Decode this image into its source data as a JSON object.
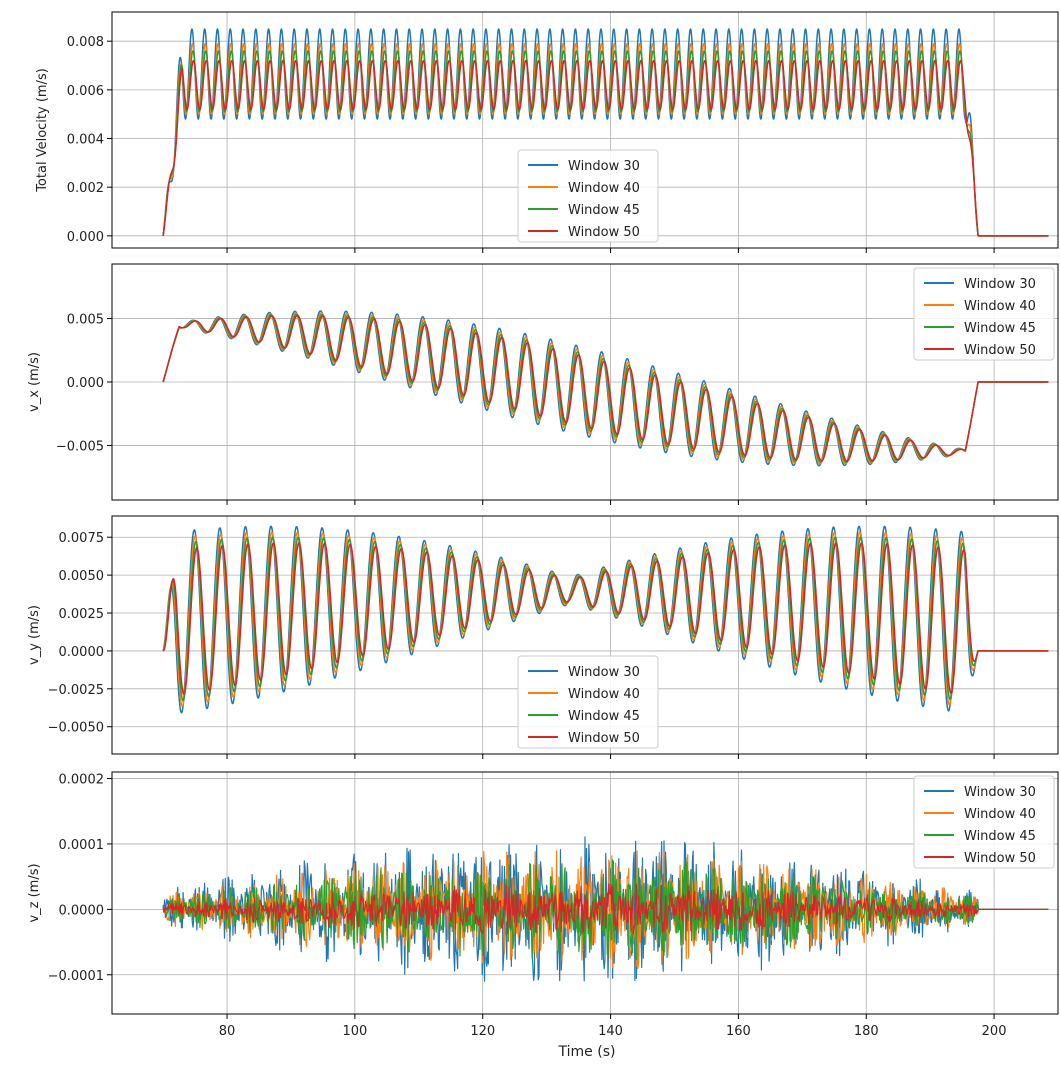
{
  "figure": {
    "xlabel": "Time (s)",
    "x_ticks": [
      80,
      100,
      120,
      140,
      160,
      180,
      200
    ]
  },
  "legend_entries": [
    {
      "label": "Window 30",
      "color": "#1f77b4"
    },
    {
      "label": "Window 40",
      "color": "#ff7f0e"
    },
    {
      "label": "Window 45",
      "color": "#2ca02c"
    },
    {
      "label": "Window 50",
      "color": "#d62728"
    }
  ],
  "chart_data": [
    {
      "type": "line",
      "ylabel": "Total Velocity (m/s)",
      "xlim": [
        62,
        210
      ],
      "ylim": [
        -0.0005,
        0.0092
      ],
      "y_ticks": [
        0.0,
        0.002,
        0.004,
        0.006,
        0.008
      ],
      "y_tick_labels": [
        "0.000",
        "0.002",
        "0.004",
        "0.006",
        "0.008"
      ],
      "legend_position": "lower-center",
      "grid": true,
      "signal": {
        "kind": "total",
        "t_start": 70,
        "t_end": 197.5,
        "t_flat_end": 208.5,
        "period": 2.0,
        "baseline": 0.005
      },
      "series": [
        {
          "name": "Window 30",
          "color": "#1f77b4",
          "peak": 0.0085,
          "trough": 0.0048
        },
        {
          "name": "Window 40",
          "color": "#ff7f0e",
          "peak": 0.0079,
          "trough": 0.005
        },
        {
          "name": "Window 45",
          "color": "#2ca02c",
          "peak": 0.0076,
          "trough": 0.0051
        },
        {
          "name": "Window 50",
          "color": "#d62728",
          "peak": 0.0072,
          "trough": 0.0052
        }
      ]
    },
    {
      "type": "line",
      "ylabel": "v_x (m/s)",
      "xlim": [
        62,
        210
      ],
      "ylim": [
        -0.0093,
        0.0093
      ],
      "y_ticks": [
        -0.005,
        0.0,
        0.005
      ],
      "y_tick_labels": [
        "−0.005",
        "0.000",
        "0.005"
      ],
      "legend_position": "upper-right",
      "grid": true,
      "signal": {
        "kind": "vx",
        "t_start": 70,
        "t_end": 197.5,
        "t_flat_end": 208.5,
        "period": 4.0,
        "max_amplitude": 0.0035
      },
      "series": [
        {
          "name": "Window 30",
          "color": "#1f77b4",
          "amplitude_scale": 1.0
        },
        {
          "name": "Window 40",
          "color": "#ff7f0e",
          "amplitude_scale": 0.92
        },
        {
          "name": "Window 45",
          "color": "#2ca02c",
          "amplitude_scale": 0.86
        },
        {
          "name": "Window 50",
          "color": "#d62728",
          "amplitude_scale": 0.8
        }
      ]
    },
    {
      "type": "line",
      "ylabel": "v_y (m/s)",
      "xlim": [
        62,
        210
      ],
      "ylim": [
        -0.0068,
        0.0089
      ],
      "y_ticks": [
        -0.005,
        -0.0025,
        0.0,
        0.0025,
        0.005,
        0.0075
      ],
      "y_tick_labels": [
        "−0.0050",
        "−0.0025",
        "0.0000",
        "0.0025",
        "0.0050",
        "0.0075"
      ],
      "legend_position": "lower-center",
      "grid": true,
      "signal": {
        "kind": "vy",
        "t_start": 70,
        "t_end": 197.5,
        "t_flat_end": 208.5,
        "period": 4.0,
        "max_amplitude": 0.006
      },
      "series": [
        {
          "name": "Window 30",
          "color": "#1f77b4",
          "amplitude_scale": 1.0
        },
        {
          "name": "Window 40",
          "color": "#ff7f0e",
          "amplitude_scale": 0.93
        },
        {
          "name": "Window 45",
          "color": "#2ca02c",
          "amplitude_scale": 0.87
        },
        {
          "name": "Window 50",
          "color": "#d62728",
          "amplitude_scale": 0.8
        }
      ]
    },
    {
      "type": "line",
      "ylabel": "v_z (m/s)",
      "xlabel": "Time (s)",
      "xlim": [
        62,
        210
      ],
      "ylim": [
        -0.00016,
        0.00021
      ],
      "y_ticks": [
        -0.0001,
        0.0,
        0.0001,
        0.0002
      ],
      "y_tick_labels": [
        "−0.0001",
        "0.0000",
        "0.0001",
        "0.0002"
      ],
      "legend_position": "upper-right",
      "grid": true,
      "signal": {
        "kind": "vz",
        "t_start": 70,
        "t_end": 197.5,
        "t_flat_end": 208.5,
        "period": 4.0
      },
      "series": [
        {
          "name": "Window 30",
          "color": "#1f77b4",
          "amplitude": 0.00012
        },
        {
          "name": "Window 40",
          "color": "#ff7f0e",
          "amplitude": 9.5e-05
        },
        {
          "name": "Window 45",
          "color": "#2ca02c",
          "amplitude": 8e-05
        },
        {
          "name": "Window 50",
          "color": "#d62728",
          "amplitude": 4e-05
        }
      ]
    }
  ]
}
